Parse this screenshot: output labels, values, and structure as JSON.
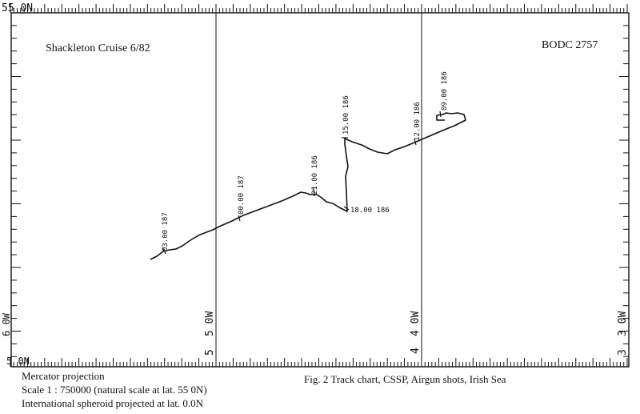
{
  "map": {
    "title_left": "Shackleton Cruise 6/82",
    "title_right": "BODC 2757",
    "top_left_label": "55  0N",
    "bottom_left_label": "5   0N",
    "meridians": [
      {
        "label": "5  0W",
        "number": "5"
      },
      {
        "label": "4  0W",
        "number": "4"
      }
    ],
    "left_edge_label": "6  0W",
    "right_edge_label": "3  0W",
    "right_edge_number": "3",
    "track_labels": [
      "03.00 187",
      "00.00 187",
      "21.00 186",
      "15.00 186",
      "18.00 186",
      "12.00 186",
      "09.00 186"
    ],
    "colors": {
      "ink": "#111111",
      "paper": "#ffffff"
    }
  },
  "caption": {
    "line1": "Mercator projection",
    "line2": "Scale  1 : 750000 (natural scale at lat. 55 0N)",
    "line3": "International spheroid projected at lat. 0.0N",
    "figure": "Fig. 2   Track chart, CSSP, Airgun shots, Irish Sea"
  }
}
